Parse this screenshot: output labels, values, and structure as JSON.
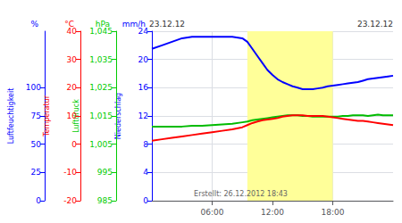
{
  "chart_data": {
    "type": "line",
    "annotations": [
      "23.12.12",
      "23.12.12",
      "Erstellt: 26.12.2012 18:43"
    ],
    "x": [
      0,
      1,
      2,
      3,
      4,
      5,
      6,
      7,
      8,
      9,
      9.5,
      10,
      10.5,
      11,
      11.5,
      12,
      12.5,
      13,
      13.5,
      14,
      14.5,
      15,
      15.5,
      16,
      16.5,
      17,
      17.5,
      18,
      18.5,
      19,
      19.5,
      20,
      20.5,
      21,
      21.5,
      22,
      22.5,
      23,
      23.5,
      24
    ],
    "xlim": [
      0,
      24
    ],
    "xticks": [
      {
        "value": 6,
        "label": "06:00"
      },
      {
        "value": 12,
        "label": "12:00"
      },
      {
        "value": 18,
        "label": "18:00"
      }
    ],
    "ylim": [
      0,
      24
    ],
    "yticks": [
      0,
      4,
      8,
      12,
      16,
      20,
      24
    ],
    "ylabel": "Niederschlag",
    "yunit": "mm/h",
    "ycolor": "#0000ff",
    "y_scales": [
      {
        "label": "Luftfeuchtigkeit",
        "unit": "%",
        "color": "#0000ff",
        "lim": [
          0,
          150
        ],
        "ticks": [
          0,
          25,
          50,
          75,
          100
        ]
      },
      {
        "label": "Temperatur",
        "unit": "°C",
        "color": "#ff0000",
        "lim": [
          -20,
          40
        ],
        "ticks": [
          -20,
          -10,
          0,
          10,
          20,
          30,
          40
        ]
      },
      {
        "label": "Luftdruck",
        "unit": "hPa",
        "color": "#00cc00",
        "lim": [
          985,
          1045
        ],
        "ticks": [
          985,
          995,
          1005,
          1015,
          1025,
          1035,
          1045
        ]
      }
    ],
    "series": [
      {
        "color": "#0000ff",
        "values": [
          21.5,
          22.0,
          22.5,
          23.0,
          23.2,
          23.2,
          23.2,
          23.2,
          23.2,
          23.0,
          22.5,
          21.5,
          20.5,
          19.5,
          18.5,
          17.8,
          17.2,
          16.8,
          16.5,
          16.2,
          16.0,
          15.8,
          15.8,
          15.8,
          15.9,
          16.0,
          16.2,
          16.3,
          16.4,
          16.5,
          16.6,
          16.7,
          16.8,
          17.0,
          17.2,
          17.3,
          17.4,
          17.5,
          17.6,
          17.7
        ]
      },
      {
        "color": "#00bb00",
        "values": [
          10.5,
          10.5,
          10.5,
          10.5,
          10.6,
          10.6,
          10.7,
          10.8,
          10.9,
          11.1,
          11.2,
          11.4,
          11.5,
          11.6,
          11.7,
          11.8,
          11.9,
          12.0,
          12.1,
          12.1,
          12.1,
          12.0,
          12.0,
          11.9,
          11.9,
          11.9,
          11.9,
          11.9,
          11.9,
          12.0,
          12.0,
          12.1,
          12.1,
          12.1,
          12.0,
          12.1,
          12.2,
          12.1,
          12.1,
          12.1
        ]
      },
      {
        "color": "#ff0000",
        "values": [
          8.5,
          8.7,
          8.9,
          9.1,
          9.3,
          9.5,
          9.7,
          9.9,
          10.1,
          10.4,
          10.7,
          11.0,
          11.2,
          11.4,
          11.5,
          11.6,
          11.7,
          11.9,
          12.0,
          12.1,
          12.1,
          12.1,
          12.0,
          12.0,
          12.0,
          12.0,
          11.9,
          11.8,
          11.7,
          11.6,
          11.5,
          11.4,
          11.3,
          11.3,
          11.2,
          11.1,
          11.0,
          10.9,
          10.8,
          10.7
        ]
      }
    ],
    "highlight_x": [
      9.5,
      18.0
    ],
    "highlight_color": "#ffff99",
    "grid": true
  }
}
